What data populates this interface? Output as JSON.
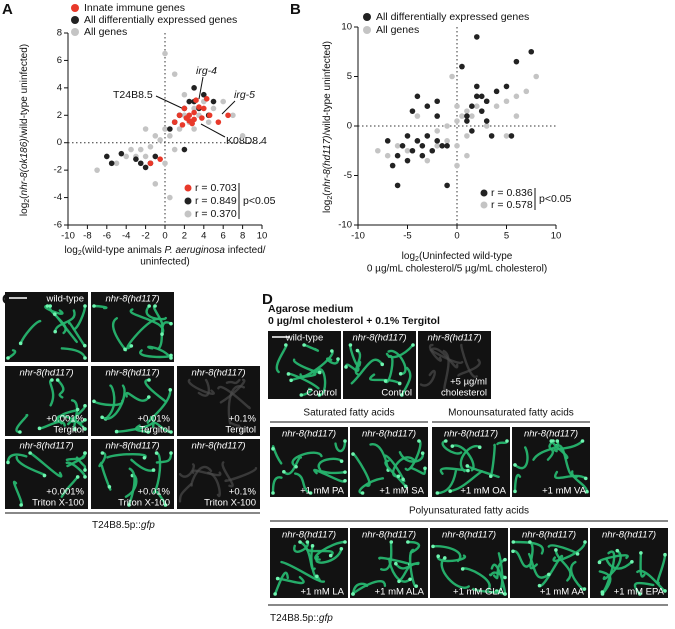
{
  "chart_data": [
    {
      "type": "scatter",
      "ylabel": [
        "log",
        "2",
        "(",
        "nhr-8(ok186)",
        "/wild-type uninfected)"
      ],
      "xlabel": [
        [
          "log",
          "2",
          "(wild-type animals ",
          "P. aeruginosa",
          " infected/"
        ],
        [
          "uninfected)"
        ]
      ],
      "xlim": [
        -10,
        10
      ],
      "xticks": [
        -10,
        -8,
        -6,
        -4,
        -2,
        0,
        2,
        4,
        6,
        8,
        10
      ],
      "ylim": [
        -6,
        8
      ],
      "yticks": [
        -6,
        -4,
        -2,
        0,
        2,
        4,
        6,
        8
      ],
      "series": [
        {
          "name": "Innate immune genes",
          "color": "#e8392a",
          "x": [
            1,
            1.5,
            1.8,
            2,
            2.2,
            2.5,
            2.8,
            3,
            3.2,
            3.5,
            3.8,
            4,
            4.3,
            4.6,
            5.5,
            3,
            2.5,
            6.5,
            -1.5,
            -0.5
          ],
          "y": [
            1.5,
            2,
            1.3,
            2.5,
            1.8,
            2,
            1.4,
            2.2,
            3.1,
            2.6,
            1.8,
            2.5,
            3.2,
            2,
            1.5,
            1.7,
            1.6,
            2,
            -1.5,
            -1.2
          ]
        },
        {
          "name": "All differentially expressed genes",
          "color": "#222222",
          "x": [
            -6,
            -5.5,
            -4.5,
            -3,
            -2.5,
            -2,
            -1.5,
            -1,
            1,
            1.5,
            2,
            2.5,
            3,
            3.5,
            4,
            4.5,
            5,
            0.5,
            2,
            3
          ],
          "y": [
            -1,
            -1.5,
            -0.8,
            -1.2,
            -1.5,
            -1.8,
            -1.5,
            -1,
            1.5,
            2,
            2.5,
            3,
            3,
            2.5,
            3.5,
            2,
            3,
            1,
            -0.5,
            4
          ]
        },
        {
          "name": "All genes",
          "color": "#c4c4c4",
          "x": [
            -7,
            -6,
            -5,
            -4,
            -3.5,
            -3,
            -2.5,
            -2,
            -1.5,
            -1,
            -1,
            -0.5,
            0,
            0,
            0.5,
            1,
            1,
            1.5,
            2,
            2.5,
            3,
            3.5,
            4,
            5,
            6,
            7,
            8,
            -1,
            0.5,
            2,
            -2,
            1,
            0,
            3,
            4.5
          ],
          "y": [
            -2,
            -1,
            -1.5,
            -1,
            -0.5,
            -1,
            -0.5,
            -1,
            -0.3,
            0.5,
            -1,
            0.2,
            1,
            -1.5,
            0.5,
            1.5,
            -0.5,
            1,
            2,
            1.5,
            2.5,
            2,
            3,
            2.5,
            3,
            2,
            0.5,
            -3,
            -4,
            3.5,
            1,
            5,
            6.5,
            1,
            1.5
          ]
        }
      ],
      "annotations": [
        "T24B8.5",
        "irg-4",
        "irg-5",
        "K08D8.4"
      ],
      "stats": [
        "r = 0.703",
        "r = 0.849",
        "r = 0.370"
      ],
      "p_label": "p<0.05"
    },
    {
      "type": "scatter",
      "ylabel": [
        "log",
        "2",
        "(",
        "nhr-8(hd117)",
        "/wild-type uninfected)"
      ],
      "xlabel": [
        [
          "log",
          "2",
          "(Uninfected wild-type"
        ],
        [
          "0 µg/mL cholesterol/5 µg/mL cholesterol)"
        ]
      ],
      "xlim": [
        -10,
        10
      ],
      "xticks": [
        -10,
        -5,
        0,
        5,
        10
      ],
      "ylim": [
        -10,
        10
      ],
      "yticks": [
        -10,
        -5,
        0,
        5,
        10
      ],
      "series": [
        {
          "name": "All differentially expressed genes",
          "color": "#222222",
          "x": [
            -7,
            -6.5,
            -6,
            -5.5,
            -5,
            -4.5,
            -4,
            -3.5,
            -3,
            -2.5,
            -2,
            -1.5,
            -1,
            -4,
            -3,
            -2,
            -5,
            -3.5,
            1,
            1.5,
            2,
            2.5,
            3,
            1,
            2,
            3,
            1.5,
            2.5,
            4,
            5,
            6,
            7.5,
            -1,
            -2,
            0.5,
            -6,
            2,
            3.5,
            5.5,
            -4.5
          ],
          "y": [
            -1.5,
            -4,
            -6,
            -2,
            -1,
            -2.5,
            -1.5,
            -2,
            -1,
            -2.5,
            -1.5,
            -2,
            -2,
            3,
            2,
            1,
            -3.5,
            -3,
            1,
            2,
            3,
            1.5,
            0.5,
            0.5,
            4,
            2.5,
            -0.5,
            3,
            3.5,
            4,
            6.5,
            7.5,
            -6,
            2.5,
            6,
            -3,
            9,
            -1,
            -1,
            1.5
          ]
        },
        {
          "name": "All genes",
          "color": "#c4c4c4",
          "x": [
            -8,
            -7,
            -6,
            -5,
            -4,
            -3,
            -2,
            -1,
            0,
            0,
            0,
            0.5,
            1,
            1.5,
            2,
            2.5,
            3,
            4,
            5,
            6,
            7,
            8,
            -1,
            -2,
            1,
            2,
            0,
            -0.5,
            3,
            -4,
            5,
            6,
            0.5,
            -3,
            1
          ],
          "y": [
            -2.5,
            -3,
            -2,
            -2.5,
            -1.5,
            -1,
            -0.5,
            0,
            2,
            -2,
            0.5,
            1,
            1.5,
            1,
            2,
            1.5,
            2.5,
            2,
            2.5,
            3,
            3.5,
            5,
            -1.5,
            -2,
            -1,
            3,
            -4,
            5,
            0,
            1,
            -1,
            1,
            6,
            -3.5,
            -3
          ]
        }
      ],
      "stats": [
        "r = 0.836",
        "r = 0.578"
      ],
      "p_label": "p<0.05"
    }
  ],
  "panel_labels": [
    "A",
    "B",
    "C",
    "D"
  ],
  "panel_c": {
    "panels": [
      {
        "top": "wild-type"
      },
      {
        "top": "nhr-8(hd117)"
      },
      {
        "top": "nhr-8(hd117)",
        "bottom": [
          "+0.001%",
          "Tergitol"
        ]
      },
      {
        "top": "nhr-8(hd117)",
        "bottom": [
          "+0.01%",
          "Tergitol"
        ]
      },
      {
        "top": "nhr-8(hd117)",
        "bottom": [
          "+0.1%",
          "Tergitol"
        ]
      },
      {
        "top": "nhr-8(hd117)",
        "bottom": [
          "+0.001%",
          "Triton X-100"
        ]
      },
      {
        "top": "nhr-8(hd117)",
        "bottom": [
          "+0.01%",
          "Triton X-100"
        ]
      },
      {
        "top": "nhr-8(hd117)",
        "bottom": [
          "+0.1%",
          "Triton X-100"
        ]
      }
    ],
    "reporter": [
      "T24B8.5p::",
      "gfp"
    ]
  },
  "panel_d": {
    "heading": [
      "Agarose medium",
      "0 µg/ml cholesterol + 0.1% Tergitol"
    ],
    "groups": [
      "Saturated fatty acids",
      "Monounsaturated fatty acids",
      "Polyunsaturated fatty acids"
    ],
    "panels": [
      {
        "top": "wild-type",
        "bottom": [
          "Control"
        ]
      },
      {
        "top": "nhr-8(hd117)",
        "bottom": [
          "Control"
        ]
      },
      {
        "top": "nhr-8(hd117)",
        "bottom": [
          "+5 µg/ml",
          "cholesterol"
        ]
      },
      {
        "top": "nhr-8(hd117)",
        "bottom": [
          "+1 mM PA"
        ]
      },
      {
        "top": "nhr-8(hd117)",
        "bottom": [
          "+1 mM SA"
        ]
      },
      {
        "top": "nhr-8(hd117)",
        "bottom": [
          "+1 mM OA"
        ]
      },
      {
        "top": "nhr-8(hd117)",
        "bottom": [
          "+1 mM VA"
        ]
      },
      {
        "top": "nhr-8(hd117)",
        "bottom": [
          "+1 mM LA"
        ]
      },
      {
        "top": "nhr-8(hd117)",
        "bottom": [
          "+1 mM ALA"
        ]
      },
      {
        "top": "nhr-8(hd117)",
        "bottom": [
          "+1 mM GLA"
        ]
      },
      {
        "top": "nhr-8(hd117)",
        "bottom": [
          "+1 mM AA"
        ]
      },
      {
        "top": "nhr-8(hd117)",
        "bottom": [
          "+1 mM EPA"
        ]
      }
    ],
    "reporter": [
      "T24B8.5p::",
      "gfp"
    ]
  }
}
